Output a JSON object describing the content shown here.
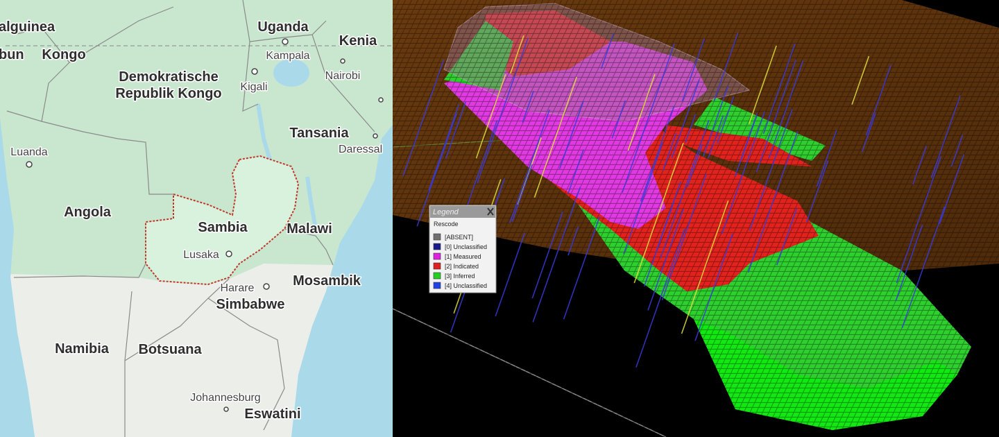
{
  "map": {
    "labels": [
      "alguinea",
      "bun",
      "Kongo",
      "Uganda",
      "Kenia",
      "Kampala",
      "Nairobi",
      "Demokratische",
      "Republik Kongo",
      "Kigali",
      "Tansania",
      "Luanda",
      "Daressal",
      "Angola",
      "Sambia",
      "Malawi",
      "Lusaka",
      "Harare",
      "Mosambik",
      "Simbabwe",
      "Namibia",
      "Botsuana",
      "Johannesburg",
      "Eswatini"
    ]
  },
  "legend": {
    "title": "Legend",
    "subtitle": "Rescode",
    "items": [
      {
        "label": "[ABSENT]",
        "color": "#707070"
      },
      {
        "label": "[0] Unclassified",
        "color": "#1a1a8c"
      },
      {
        "label": "[1] Measured",
        "color": "#e020e0"
      },
      {
        "label": "[2] Indicated",
        "color": "#e02020"
      },
      {
        "label": "[3] Inferred",
        "color": "#22d022"
      },
      {
        "label": "[4] Unclassified",
        "color": "#2040e8"
      }
    ]
  }
}
